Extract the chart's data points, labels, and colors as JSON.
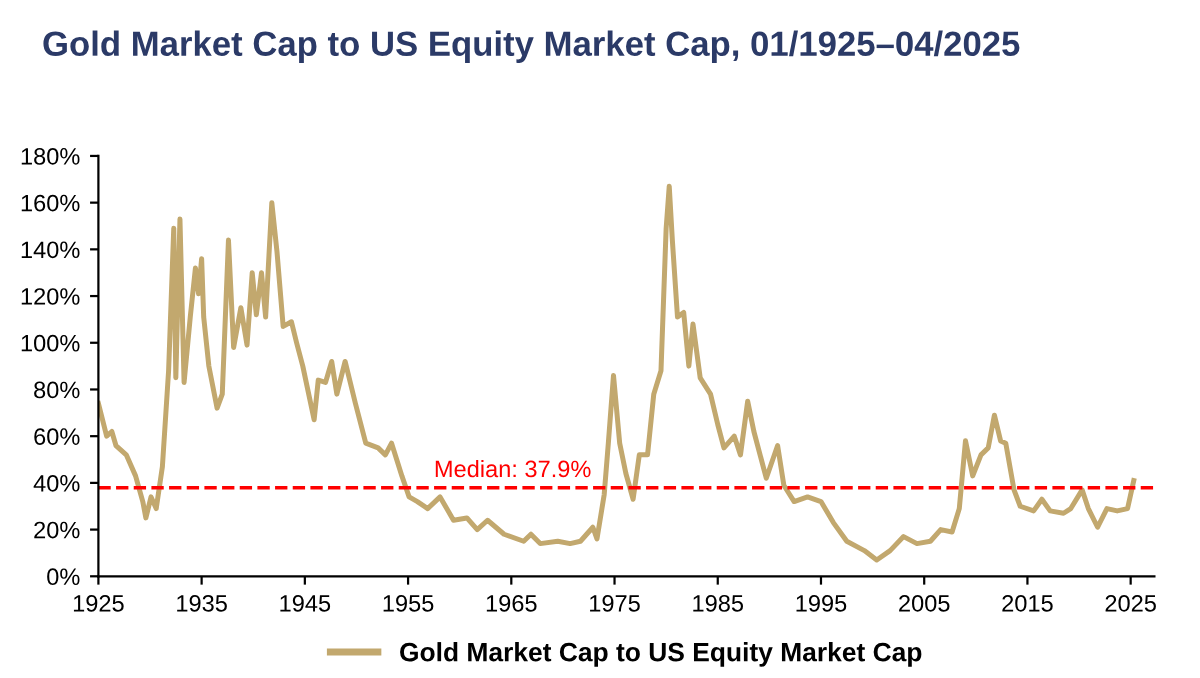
{
  "chart_data": {
    "type": "line",
    "title": "Gold Market Cap to US Equity Market Cap, 01/1925–04/2025",
    "xlim": [
      1925,
      2027.3
    ],
    "xticks": [
      1925,
      1935,
      1945,
      1955,
      1965,
      1975,
      1985,
      1995,
      2005,
      2015,
      2025
    ],
    "ylim": [
      0,
      180
    ],
    "yticks": [
      {
        "value": 0,
        "label": "0%"
      },
      {
        "value": 20,
        "label": "20%"
      },
      {
        "value": 40,
        "label": "40%"
      },
      {
        "value": 60,
        "label": "60%"
      },
      {
        "value": 80,
        "label": "80%"
      },
      {
        "value": 100,
        "label": "100%"
      },
      {
        "value": 120,
        "label": "120%"
      },
      {
        "value": 140,
        "label": "140%"
      },
      {
        "value": 160,
        "label": "160%"
      },
      {
        "value": 180,
        "label": "180%"
      }
    ],
    "grid": false,
    "legend": "bottom",
    "marker": "none",
    "line_style": "solid",
    "ref_lines": [
      {
        "axis": "y",
        "value": 37.9,
        "label": "Median: 37.9%",
        "color": "#ff0000",
        "line_style": "dashed"
      }
    ],
    "series": [
      {
        "name": "Gold Market Cap to US Equity Market Cap",
        "color": "#c2a86e",
        "x": [
          1925.0,
          1925.8,
          1926.3,
          1926.7,
          1927.7,
          1928.6,
          1929.3,
          1929.6,
          1930.1,
          1930.6,
          1931.2,
          1931.8,
          1932.3,
          1932.5,
          1932.9,
          1933.3,
          1933.9,
          1934.4,
          1934.7,
          1935.0,
          1935.2,
          1935.7,
          1936.5,
          1937.0,
          1937.6,
          1938.1,
          1938.8,
          1939.4,
          1939.9,
          1940.3,
          1940.8,
          1941.2,
          1941.8,
          1942.3,
          1942.9,
          1943.7,
          1944.2,
          1944.8,
          1945.9,
          1946.3,
          1947.0,
          1947.6,
          1948.1,
          1948.9,
          1949.9,
          1950.9,
          1952.1,
          1952.8,
          1953.4,
          1954.4,
          1955.1,
          1955.9,
          1956.9,
          1958.1,
          1959.4,
          1960.7,
          1961.7,
          1962.7,
          1964.3,
          1966.2,
          1966.9,
          1967.8,
          1969.5,
          1970.7,
          1971.7,
          1972.9,
          1973.3,
          1974.0,
          1974.4,
          1974.9,
          1975.5,
          1976.1,
          1976.8,
          1977.4,
          1978.2,
          1978.8,
          1979.5,
          1980.0,
          1980.3,
          1980.6,
          1981.1,
          1981.7,
          1982.2,
          1982.6,
          1983.3,
          1984.3,
          1985.0,
          1985.6,
          1986.6,
          1987.2,
          1987.9,
          1988.5,
          1989.7,
          1990.8,
          1991.4,
          1992.4,
          1993.7,
          1995.0,
          1996.2,
          1997.5,
          1999.2,
          2000.4,
          2001.7,
          2003.0,
          2004.3,
          2005.6,
          2006.6,
          2007.7,
          2008.4,
          2009.0,
          2009.7,
          2010.5,
          2011.2,
          2011.8,
          2012.4,
          2012.9,
          2013.7,
          2014.3,
          2015.6,
          2016.4,
          2017.2,
          2018.5,
          2019.2,
          2020.3,
          2020.9,
          2021.8,
          2022.7,
          2023.7,
          2024.7,
          2025.3
        ],
        "values": [
          74,
          60,
          62,
          56,
          52,
          43,
          32,
          25,
          34,
          29,
          47,
          88,
          149,
          85,
          153,
          83,
          111,
          132,
          121,
          136,
          111,
          90,
          72,
          78,
          144,
          98,
          115,
          99,
          130,
          112,
          130,
          111,
          160,
          139,
          107,
          109,
          100,
          90,
          67,
          84,
          83,
          92,
          78,
          92,
          74,
          57,
          55,
          52,
          57,
          43,
          34,
          32,
          29,
          34,
          24,
          25,
          20,
          24,
          18,
          15,
          18,
          14,
          15,
          14,
          15,
          21,
          16,
          35,
          57,
          86,
          57,
          44,
          33,
          52,
          52,
          78,
          88,
          149,
          167,
          144,
          111,
          113,
          90,
          108,
          85,
          78,
          65,
          55,
          60,
          52,
          75,
          62,
          42,
          56,
          39,
          32,
          34,
          32,
          23,
          15,
          11,
          7,
          11,
          17,
          14,
          15,
          20,
          19,
          29,
          58,
          43,
          52,
          55,
          69,
          58,
          57,
          37,
          30,
          28,
          33,
          28,
          27,
          29,
          37,
          29,
          21,
          29,
          28,
          29,
          41
        ]
      }
    ]
  }
}
